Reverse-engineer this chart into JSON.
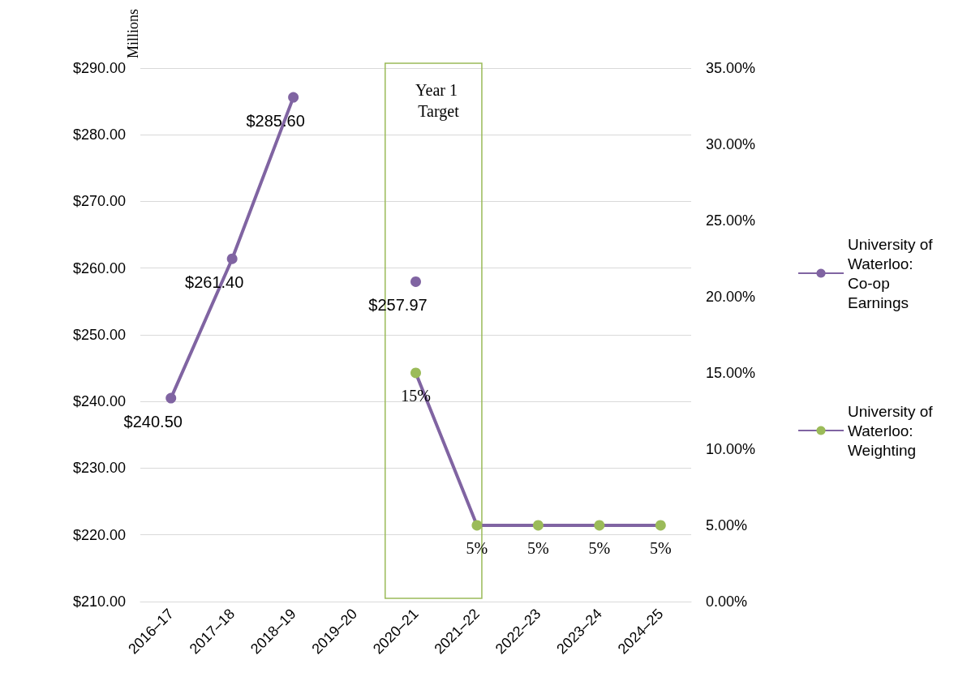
{
  "chart_data": {
    "type": "line",
    "ylabel": "Millions",
    "categories": [
      "2016–17",
      "2017–18",
      "2018–19",
      "2019–20",
      "2020–21",
      "2021–22",
      "2022–23",
      "2023–24",
      "2024–25"
    ],
    "series": [
      {
        "name": "University of Waterloo: Co-op Earnings",
        "color": "#8064a2",
        "values": [
          240.5,
          261.4,
          285.6,
          null,
          257.97,
          null,
          null,
          null,
          null
        ],
        "value_labels": [
          "$240.50",
          "$261.40",
          "$285.60",
          null,
          "$257.97",
          null,
          null,
          null,
          null
        ]
      },
      {
        "name": "University of Waterloo: Weighting",
        "color": "#8064a2",
        "colors": [
          null,
          null,
          null,
          null,
          "#9bbb59",
          "#9bbb59",
          "#9bbb59",
          "#9bbb59",
          "#9bbb59"
        ],
        "axis": "y2",
        "values": [
          null,
          null,
          null,
          null,
          15,
          5,
          5,
          5,
          5
        ],
        "value_labels": [
          null,
          null,
          null,
          null,
          "15%",
          "5%",
          "5%",
          "5%",
          "5%"
        ]
      }
    ],
    "ylim": [
      210,
      290
    ],
    "yticks": [
      {
        "value": 210,
        "label": "$210.00"
      },
      {
        "value": 220,
        "label": "$220.00"
      },
      {
        "value": 230,
        "label": "$230.00"
      },
      {
        "value": 240,
        "label": "$240.00"
      },
      {
        "value": 250,
        "label": "$250.00"
      },
      {
        "value": 260,
        "label": "$260.00"
      },
      {
        "value": 270,
        "label": "$270.00"
      },
      {
        "value": 280,
        "label": "$280.00"
      },
      {
        "value": 290,
        "label": "$290.00"
      }
    ],
    "y2lim": [
      0,
      35
    ],
    "y2ticks": [
      {
        "value": 0,
        "label": "0.00%"
      },
      {
        "value": 5,
        "label": "5.00%"
      },
      {
        "value": 10,
        "label": "10.00%"
      },
      {
        "value": 15,
        "label": "15.00%"
      },
      {
        "value": 20,
        "label": "20.00%"
      },
      {
        "value": 25,
        "label": "25.00%"
      },
      {
        "value": 30,
        "label": "30.00%"
      },
      {
        "value": 35,
        "label": "35.00%"
      }
    ],
    "annotations": [
      "Year 1 Target"
    ],
    "grid": "y",
    "legend": "right",
    "marker": "circle",
    "line_style": "solid"
  }
}
